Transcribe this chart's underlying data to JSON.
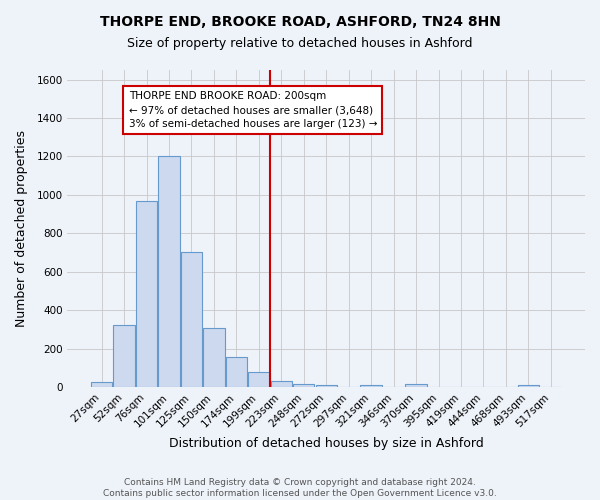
{
  "title": "THORPE END, BROOKE ROAD, ASHFORD, TN24 8HN",
  "subtitle": "Size of property relative to detached houses in Ashford",
  "xlabel": "Distribution of detached houses by size in Ashford",
  "ylabel": "Number of detached properties",
  "footer_line1": "Contains HM Land Registry data © Crown copyright and database right 2024.",
  "footer_line2": "Contains public sector information licensed under the Open Government Licence v3.0.",
  "bin_labels": [
    "27sqm",
    "52sqm",
    "76sqm",
    "101sqm",
    "125sqm",
    "150sqm",
    "174sqm",
    "199sqm",
    "223sqm",
    "248sqm",
    "272sqm",
    "297sqm",
    "321sqm",
    "346sqm",
    "370sqm",
    "395sqm",
    "419sqm",
    "444sqm",
    "468sqm",
    "493sqm",
    "517sqm"
  ],
  "bin_values": [
    25,
    325,
    970,
    1200,
    700,
    305,
    155,
    80,
    30,
    15,
    10,
    0,
    10,
    0,
    15,
    0,
    0,
    0,
    0,
    10,
    0
  ],
  "bar_color": "#ccd9ee",
  "bar_edge_color": "#6699cc",
  "reference_line_color": "#cc0000",
  "annotation_text": "THORPE END BROOKE ROAD: 200sqm\n← 97% of detached houses are smaller (3,648)\n3% of semi-detached houses are larger (123) →",
  "annotation_box_facecolor": "white",
  "annotation_box_edgecolor": "#cc0000",
  "ylim": [
    0,
    1650
  ],
  "yticks": [
    0,
    200,
    400,
    600,
    800,
    1000,
    1200,
    1400,
    1600
  ],
  "background_color": "#eef2f9",
  "grid_color": "#c8c8c8",
  "title_fontsize": 10,
  "subtitle_fontsize": 9,
  "axis_label_fontsize": 9,
  "tick_fontsize": 7.5,
  "footer_fontsize": 6.5,
  "annotation_fontsize": 7.5
}
